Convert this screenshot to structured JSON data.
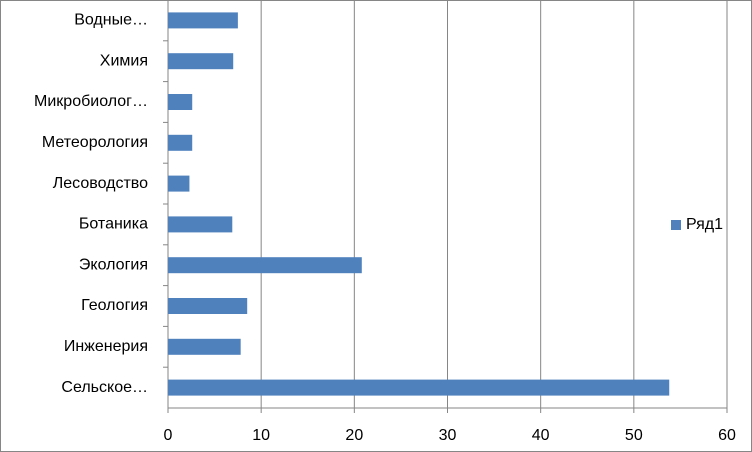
{
  "chart_data": {
    "type": "barh",
    "categories": [
      "Водные…",
      "Химия",
      "Микробиолог…",
      "Метеорология",
      "Лесоводство",
      "Ботаника",
      "Экология",
      "Геология",
      "Инженерия",
      "Сельское…"
    ],
    "series": [
      {
        "name": "Ряд1",
        "color": "#4f81bd",
        "values": [
          7.5,
          7.0,
          2.6,
          2.6,
          2.3,
          6.9,
          20.8,
          8.5,
          7.8,
          53.8
        ]
      }
    ],
    "xlim": [
      0,
      60
    ],
    "xticks": [
      0,
      10,
      20,
      30,
      40,
      50,
      60
    ],
    "grid": true,
    "legend": "right"
  }
}
